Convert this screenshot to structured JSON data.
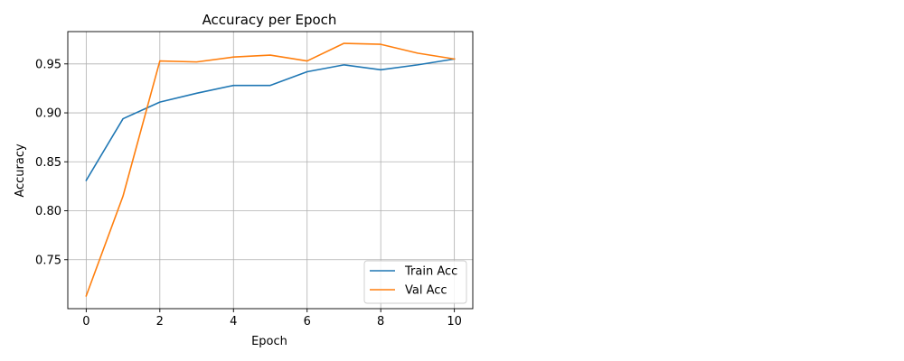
{
  "chart_data": {
    "type": "line",
    "title": "Accuracy per Epoch",
    "xlabel": "Epoch",
    "ylabel": "Accuracy",
    "x": [
      0,
      1,
      2,
      3,
      4,
      5,
      6,
      7,
      8,
      9,
      10
    ],
    "xticks": [
      0,
      2,
      4,
      6,
      8,
      10
    ],
    "yticks": [
      0.75,
      0.8,
      0.85,
      0.9,
      0.95
    ],
    "ytick_labels": [
      "0.75",
      "0.80",
      "0.85",
      "0.90",
      "0.95"
    ],
    "xlim": [
      -0.5,
      10.5
    ],
    "ylim": [
      0.7,
      0.983
    ],
    "grid": true,
    "legend_position": "lower-right",
    "series": [
      {
        "name": "Train Acc",
        "color": "#1f77b4",
        "values": [
          0.831,
          0.894,
          0.911,
          0.92,
          0.928,
          0.928,
          0.942,
          0.949,
          0.944,
          0.949,
          0.955
        ]
      },
      {
        "name": "Val Acc",
        "color": "#ff7f0e",
        "values": [
          0.713,
          0.815,
          0.953,
          0.952,
          0.957,
          0.959,
          0.953,
          0.971,
          0.97,
          0.961,
          0.955
        ]
      }
    ]
  }
}
